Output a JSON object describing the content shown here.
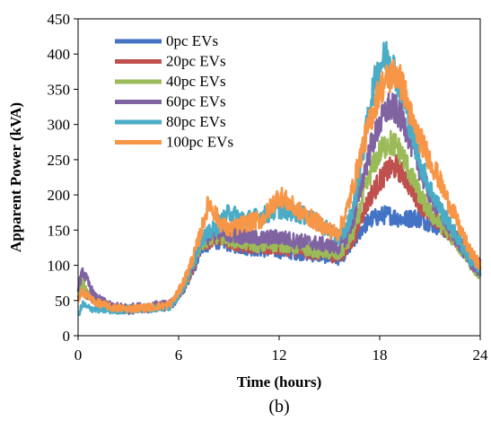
{
  "chart_data": {
    "type": "line",
    "title": "",
    "caption": "(b)",
    "xlabel": "Time (hours)",
    "ylabel": "Apparent Power (kVA)",
    "xlim": [
      0,
      24
    ],
    "ylim": [
      0,
      450
    ],
    "xticks": [
      0,
      6,
      12,
      18,
      24
    ],
    "yticks": [
      0,
      50,
      100,
      150,
      200,
      250,
      300,
      350,
      400,
      450
    ],
    "grid": false,
    "legend": "top-left",
    "series": [
      {
        "name": "0pc EVs",
        "color": "#4472c4",
        "x": [
          0,
          0.3,
          0.5,
          1,
          2,
          3,
          4,
          5,
          5.5,
          6,
          6.5,
          7,
          7.3,
          7.8,
          8.5,
          9,
          10,
          11,
          12,
          13,
          14,
          15,
          15.5,
          16,
          16.5,
          17,
          17.5,
          18,
          18.5,
          19,
          19.5,
          20,
          20.5,
          21,
          21.5,
          22,
          22.5,
          23,
          23.5,
          24
        ],
        "y": [
          55,
          65,
          58,
          48,
          38,
          36,
          38,
          40,
          42,
          55,
          75,
          100,
          125,
          130,
          135,
          130,
          125,
          122,
          120,
          118,
          115,
          112,
          110,
          118,
          135,
          155,
          165,
          170,
          172,
          168,
          165,
          168,
          165,
          160,
          155,
          150,
          140,
          125,
          110,
          100
        ]
      },
      {
        "name": "20pc EVs",
        "color": "#c0504d",
        "x": [
          0,
          0.3,
          0.5,
          1,
          2,
          3,
          4,
          5,
          5.5,
          6,
          6.5,
          7,
          7.3,
          7.8,
          8.5,
          9,
          10,
          11,
          12,
          13,
          14,
          15,
          15.5,
          16,
          16.5,
          17,
          17.5,
          18,
          18.5,
          19,
          19.5,
          20,
          20.5,
          21,
          21.5,
          22,
          22.5,
          23,
          23.5,
          24
        ],
        "y": [
          60,
          72,
          60,
          50,
          40,
          37,
          39,
          41,
          43,
          57,
          78,
          105,
          130,
          135,
          140,
          135,
          128,
          125,
          125,
          122,
          118,
          115,
          112,
          122,
          140,
          175,
          200,
          220,
          235,
          240,
          225,
          205,
          185,
          170,
          160,
          150,
          138,
          122,
          108,
          98
        ]
      },
      {
        "name": "40pc EVs",
        "color": "#9bbb59",
        "x": [
          0,
          0.3,
          0.5,
          1,
          2,
          3,
          4,
          5,
          5.5,
          6,
          6.5,
          7,
          7.3,
          7.8,
          8.5,
          9,
          10,
          11,
          12,
          13,
          14,
          15,
          15.5,
          16,
          16.5,
          17,
          17.5,
          18,
          18.5,
          19,
          19.5,
          20,
          20.5,
          21,
          21.5,
          22,
          22.5,
          23,
          23.5,
          24
        ],
        "y": [
          62,
          75,
          62,
          51,
          41,
          38,
          40,
          42,
          44,
          58,
          80,
          108,
          132,
          138,
          142,
          138,
          132,
          128,
          130,
          126,
          122,
          118,
          115,
          128,
          150,
          195,
          235,
          260,
          275,
          270,
          250,
          220,
          195,
          175,
          160,
          150,
          135,
          118,
          100,
          85
        ]
      },
      {
        "name": "60pc EVs",
        "color": "#8064a2",
        "x": [
          0,
          0.3,
          0.5,
          1,
          2,
          3,
          4,
          5,
          5.5,
          6,
          6.5,
          7,
          7.3,
          7.8,
          8.5,
          9,
          10,
          11,
          12,
          13,
          14,
          15,
          15.5,
          16,
          16.5,
          17,
          17.5,
          18,
          18.5,
          19,
          19.5,
          20,
          20.5,
          21,
          21.5,
          22,
          22.5,
          23,
          23.5,
          24
        ],
        "y": [
          70,
          92,
          80,
          55,
          42,
          40,
          42,
          44,
          45,
          60,
          82,
          112,
          135,
          142,
          150,
          145,
          140,
          138,
          140,
          135,
          132,
          128,
          125,
          140,
          170,
          225,
          270,
          300,
          325,
          320,
          300,
          265,
          230,
          200,
          180,
          160,
          140,
          120,
          102,
          90
        ]
      },
      {
        "name": "80pc EVs",
        "color": "#4bacc6",
        "x": [
          0,
          0.3,
          0.5,
          1,
          2,
          3,
          4,
          5,
          5.5,
          6,
          6.5,
          7,
          7.3,
          7.8,
          8.5,
          9,
          10,
          11,
          12,
          13,
          14,
          15,
          15.5,
          16,
          16.5,
          17,
          17.5,
          18,
          18.5,
          19,
          19.5,
          20,
          20.5,
          21,
          21.5,
          22,
          22.5,
          23,
          23.5,
          24
        ],
        "y": [
          30,
          45,
          40,
          38,
          36,
          37,
          38,
          40,
          42,
          58,
          80,
          110,
          138,
          145,
          160,
          175,
          165,
          170,
          180,
          175,
          165,
          150,
          140,
          150,
          190,
          260,
          340,
          385,
          400,
          370,
          330,
          280,
          240,
          210,
          185,
          165,
          145,
          125,
          105,
          92
        ]
      },
      {
        "name": "100pc EVs",
        "color": "#f79646",
        "x": [
          0,
          0.3,
          0.5,
          1,
          2,
          3,
          4,
          5,
          5.5,
          6,
          6.5,
          7,
          7.3,
          7.8,
          8.5,
          9,
          10,
          11,
          12,
          13,
          14,
          15,
          15.5,
          16,
          16.5,
          17,
          17.5,
          18,
          18.5,
          19,
          19.5,
          20,
          20.5,
          21,
          21.5,
          22,
          22.5,
          23,
          23.5,
          24
        ],
        "y": [
          50,
          62,
          58,
          48,
          40,
          38,
          40,
          42,
          45,
          62,
          88,
          120,
          145,
          190,
          160,
          150,
          160,
          165,
          200,
          180,
          165,
          150,
          145,
          175,
          220,
          270,
          310,
          350,
          365,
          375,
          345,
          300,
          275,
          250,
          225,
          195,
          170,
          140,
          115,
          100
        ]
      }
    ]
  }
}
